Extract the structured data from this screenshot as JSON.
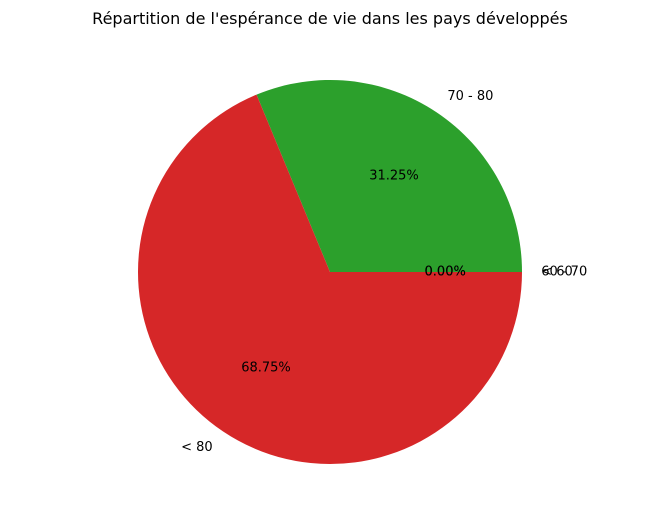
{
  "chart_data": {
    "type": "pie",
    "title": "Répartition de l'espérance de vie dans les pays développés",
    "slices": [
      {
        "label": "< 60",
        "value": 0.0,
        "pct_label": "0.00%",
        "color": "#1f77b4"
      },
      {
        "label": "60 - 70",
        "value": 0.0,
        "pct_label": "0.00%",
        "color": "#ff7f0e"
      },
      {
        "label": "70 - 80",
        "value": 31.25,
        "pct_label": "31.25%",
        "color": "#2ca02c"
      },
      {
        "label": "< 80",
        "value": 68.75,
        "pct_label": "68.75%",
        "color": "#d62728"
      }
    ],
    "start_angle_deg": 0,
    "direction": "counterclockwise"
  }
}
